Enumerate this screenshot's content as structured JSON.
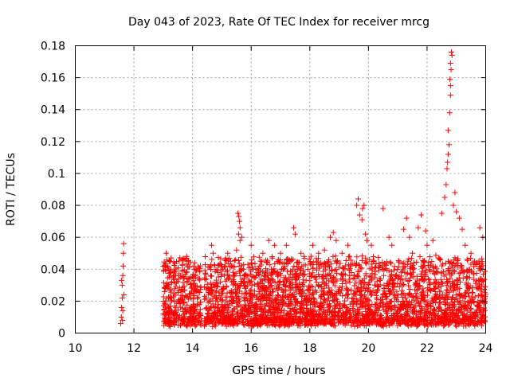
{
  "chart_data": {
    "type": "scatter",
    "title": "Day 043 of 2023, Rate Of TEC Index for receiver mrcg",
    "xlabel": "GPS time / hours",
    "ylabel": "ROTI / TECUs",
    "xlim": [
      10,
      24
    ],
    "ylim": [
      0,
      0.18
    ],
    "xticks": [
      "10",
      "12",
      "14",
      "16",
      "18",
      "20",
      "22",
      "24"
    ],
    "yticks": [
      "0",
      "0.02",
      "0.04",
      "0.06",
      "0.08",
      "0.1",
      "0.12",
      "0.14",
      "0.16",
      "0.18"
    ],
    "grid": true,
    "marker": "+",
    "color": "#ff0000",
    "series": [
      {
        "name": "ROTI",
        "points": [
          [
            11.55,
            0.006
          ],
          [
            11.57,
            0.01
          ],
          [
            11.58,
            0.016
          ],
          [
            11.6,
            0.022
          ],
          [
            11.6,
            0.03
          ],
          [
            11.62,
            0.036
          ],
          [
            11.63,
            0.042
          ],
          [
            11.64,
            0.05
          ],
          [
            11.65,
            0.056
          ],
          [
            11.62,
            0.014
          ],
          [
            11.66,
            0.024
          ],
          [
            11.58,
            0.033
          ],
          [
            11.61,
            0.008
          ],
          [
            13.1,
            0.05
          ],
          [
            13.2,
            0.045
          ],
          [
            13.25,
            0.04
          ],
          [
            13.6,
            0.035
          ],
          [
            13.8,
            0.048
          ],
          [
            13.85,
            0.045
          ],
          [
            14.1,
            0.035
          ],
          [
            14.2,
            0.034
          ],
          [
            14.65,
            0.055
          ],
          [
            14.7,
            0.05
          ],
          [
            14.8,
            0.04
          ],
          [
            15.2,
            0.05
          ],
          [
            15.3,
            0.045
          ],
          [
            15.5,
            0.052
          ],
          [
            15.55,
            0.075
          ],
          [
            15.58,
            0.073
          ],
          [
            15.6,
            0.07
          ],
          [
            15.62,
            0.066
          ],
          [
            15.57,
            0.062
          ],
          [
            15.62,
            0.058
          ],
          [
            15.68,
            0.06
          ],
          [
            16.0,
            0.055
          ],
          [
            16.4,
            0.05
          ],
          [
            16.6,
            0.058
          ],
          [
            16.8,
            0.055
          ],
          [
            17.0,
            0.05
          ],
          [
            17.2,
            0.055
          ],
          [
            17.45,
            0.066
          ],
          [
            17.5,
            0.062
          ],
          [
            17.7,
            0.05
          ],
          [
            17.8,
            0.048
          ],
          [
            18.1,
            0.055
          ],
          [
            18.3,
            0.05
          ],
          [
            18.5,
            0.052
          ],
          [
            18.7,
            0.06
          ],
          [
            18.8,
            0.063
          ],
          [
            18.9,
            0.058
          ],
          [
            19.1,
            0.05
          ],
          [
            19.3,
            0.055
          ],
          [
            19.6,
            0.08
          ],
          [
            19.65,
            0.084
          ],
          [
            19.7,
            0.074
          ],
          [
            19.8,
            0.078
          ],
          [
            19.85,
            0.08
          ],
          [
            19.78,
            0.071
          ],
          [
            19.9,
            0.062
          ],
          [
            19.95,
            0.058
          ],
          [
            20.1,
            0.055
          ],
          [
            20.5,
            0.078
          ],
          [
            20.7,
            0.06
          ],
          [
            20.8,
            0.055
          ],
          [
            21.2,
            0.065
          ],
          [
            21.3,
            0.072
          ],
          [
            21.4,
            0.06
          ],
          [
            21.5,
            0.05
          ],
          [
            21.7,
            0.066
          ],
          [
            21.8,
            0.074
          ],
          [
            21.95,
            0.064
          ],
          [
            22.0,
            0.055
          ],
          [
            22.2,
            0.058
          ],
          [
            22.5,
            0.075
          ],
          [
            22.6,
            0.085
          ],
          [
            22.65,
            0.093
          ],
          [
            22.68,
            0.103
          ],
          [
            22.7,
            0.107
          ],
          [
            22.72,
            0.112
          ],
          [
            22.75,
            0.118
          ],
          [
            22.72,
            0.127
          ],
          [
            22.77,
            0.138
          ],
          [
            22.8,
            0.149
          ],
          [
            22.78,
            0.159
          ],
          [
            22.82,
            0.165
          ],
          [
            22.8,
            0.169
          ],
          [
            22.85,
            0.174
          ],
          [
            22.83,
            0.176
          ],
          [
            22.8,
            0.155
          ],
          [
            22.9,
            0.08
          ],
          [
            22.95,
            0.088
          ],
          [
            23.0,
            0.076
          ],
          [
            23.1,
            0.072
          ],
          [
            23.2,
            0.065
          ],
          [
            23.3,
            0.055
          ],
          [
            23.5,
            0.05
          ],
          [
            23.8,
            0.066
          ],
          [
            23.9,
            0.06
          ]
        ]
      }
    ],
    "dense_band": {
      "segments": [
        [
          13.0,
          14.3
        ],
        [
          14.4,
          24.0
        ]
      ],
      "typical_min": 0.004,
      "typical_max": 0.045
    }
  }
}
